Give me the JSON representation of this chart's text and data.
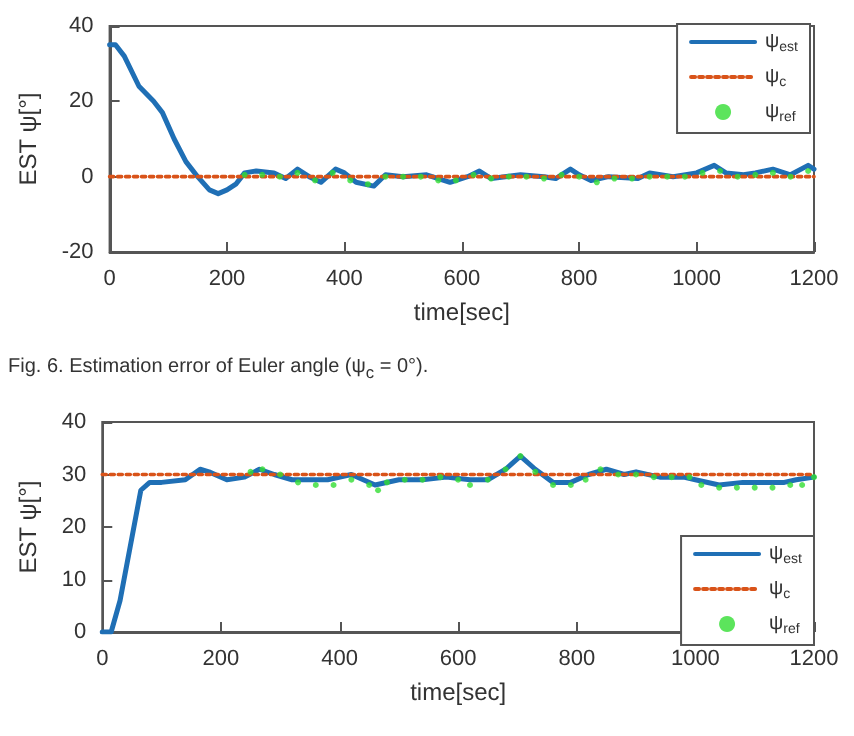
{
  "chart_data": [
    {
      "type": "line",
      "xlabel": "time[sec]",
      "ylabel": "EST ψ[°]",
      "xlim": [
        0,
        1200
      ],
      "xticks": [
        0,
        200,
        400,
        600,
        800,
        1000,
        1200
      ],
      "ylim": [
        -20,
        40
      ],
      "yticks": [
        -20,
        0,
        20,
        40
      ],
      "legend": "top right",
      "annotations": [
        "Fig. 6.  Estimation error of Euler angle (ψ$_{c}$ = 0°)."
      ],
      "series": [
        {
          "name": "ψ$_{est}$",
          "color": "#1f6fb5",
          "line_style": "solid",
          "x": [
            0,
            10,
            25,
            50,
            75,
            90,
            110,
            130,
            150,
            170,
            185,
            200,
            215,
            230,
            250,
            280,
            300,
            320,
            340,
            360,
            385,
            400,
            420,
            450,
            470,
            500,
            540,
            580,
            610,
            630,
            650,
            700,
            740,
            760,
            785,
            800,
            820,
            850,
            900,
            920,
            960,
            1000,
            1030,
            1050,
            1080,
            1100,
            1130,
            1160,
            1190,
            1200
          ],
          "values": [
            35,
            35,
            32,
            24,
            20,
            17,
            10,
            4,
            0,
            -3.5,
            -4.5,
            -3.5,
            -2,
            1,
            1.5,
            1,
            -0.5,
            2,
            0,
            -1.5,
            2,
            1,
            -1.5,
            -2.5,
            0.5,
            0,
            0.5,
            -1.5,
            0,
            1.5,
            -0.5,
            0.5,
            0,
            -0.5,
            2,
            0.5,
            -1,
            0,
            -0.5,
            1,
            0,
            1,
            3,
            1,
            0.5,
            1,
            2,
            0.5,
            3,
            2
          ]
        },
        {
          "name": "ψ$_{c}$",
          "color": "#d95319",
          "line_style": "dotted",
          "x": [
            0,
            1200
          ],
          "values": [
            0,
            0
          ]
        },
        {
          "name": "ψ$_{ref}$",
          "type": "scatter",
          "color": "#33dd33",
          "marker": "circle",
          "x": [
            230,
            260,
            290,
            320,
            350,
            380,
            410,
            440,
            470,
            500,
            530,
            560,
            590,
            620,
            650,
            680,
            710,
            740,
            770,
            800,
            830,
            860,
            890,
            920,
            950,
            980,
            1010,
            1040,
            1070,
            1100,
            1130,
            1160,
            1190
          ],
          "values": [
            0.5,
            0.5,
            0,
            1,
            -1,
            1,
            -1,
            -2,
            0,
            0,
            0,
            -1,
            -1,
            0.5,
            -0.5,
            0,
            0,
            -0.5,
            0.5,
            0,
            -1.5,
            -0.5,
            -0.5,
            0,
            0,
            0,
            1,
            1.5,
            0,
            0.5,
            1,
            0,
            1.5
          ]
        }
      ]
    },
    {
      "type": "line",
      "xlabel": "time[sec]",
      "ylabel": "EST ψ[°]",
      "xlim": [
        0,
        1200
      ],
      "xticks": [
        0,
        200,
        400,
        600,
        800,
        1000,
        1200
      ],
      "ylim": [
        0,
        40
      ],
      "yticks": [
        0,
        10,
        20,
        30,
        40
      ],
      "legend": "right",
      "series": [
        {
          "name": "ψ$_{est}$",
          "color": "#1f6fb5",
          "line_style": "solid",
          "x": [
            0,
            15,
            30,
            50,
            65,
            80,
            100,
            140,
            165,
            180,
            210,
            240,
            265,
            290,
            320,
            380,
            420,
            460,
            500,
            540,
            580,
            620,
            650,
            680,
            705,
            730,
            760,
            790,
            820,
            850,
            880,
            900,
            940,
            980,
            1000,
            1040,
            1080,
            1150,
            1170,
            1200
          ],
          "values": [
            0,
            0,
            6,
            18,
            27,
            28.5,
            28.5,
            29,
            31,
            30.5,
            29,
            29.5,
            31,
            30,
            29,
            29,
            30,
            28,
            29,
            29,
            29.5,
            29,
            29,
            31,
            33.5,
            31,
            28.5,
            28.5,
            30,
            31,
            30,
            30.5,
            29.5,
            29.5,
            29,
            28,
            28.5,
            28.5,
            29,
            29.5
          ]
        },
        {
          "name": "ψ$_{c}$",
          "color": "#d95319",
          "line_style": "dotted",
          "x": [
            0,
            1200
          ],
          "values": [
            30,
            30
          ]
        },
        {
          "name": "ψ$_{ref}$",
          "type": "scatter",
          "color": "#33dd33",
          "marker": "circle",
          "x": [
            250,
            270,
            300,
            330,
            360,
            390,
            420,
            450,
            465,
            480,
            510,
            540,
            570,
            600,
            620,
            650,
            680,
            705,
            730,
            760,
            790,
            815,
            840,
            870,
            900,
            930,
            960,
            990,
            1010,
            1040,
            1070,
            1100,
            1130,
            1160,
            1180,
            1200
          ],
          "values": [
            30.5,
            31,
            30,
            28.5,
            28,
            28,
            29,
            28,
            27,
            28.5,
            29,
            29,
            29.5,
            29,
            28,
            29,
            31,
            33.5,
            30.5,
            28,
            28,
            29,
            31,
            30,
            30,
            29.5,
            29.5,
            29.5,
            28,
            27.5,
            27.5,
            27.5,
            27.5,
            28,
            28,
            29.5
          ]
        }
      ]
    }
  ]
}
